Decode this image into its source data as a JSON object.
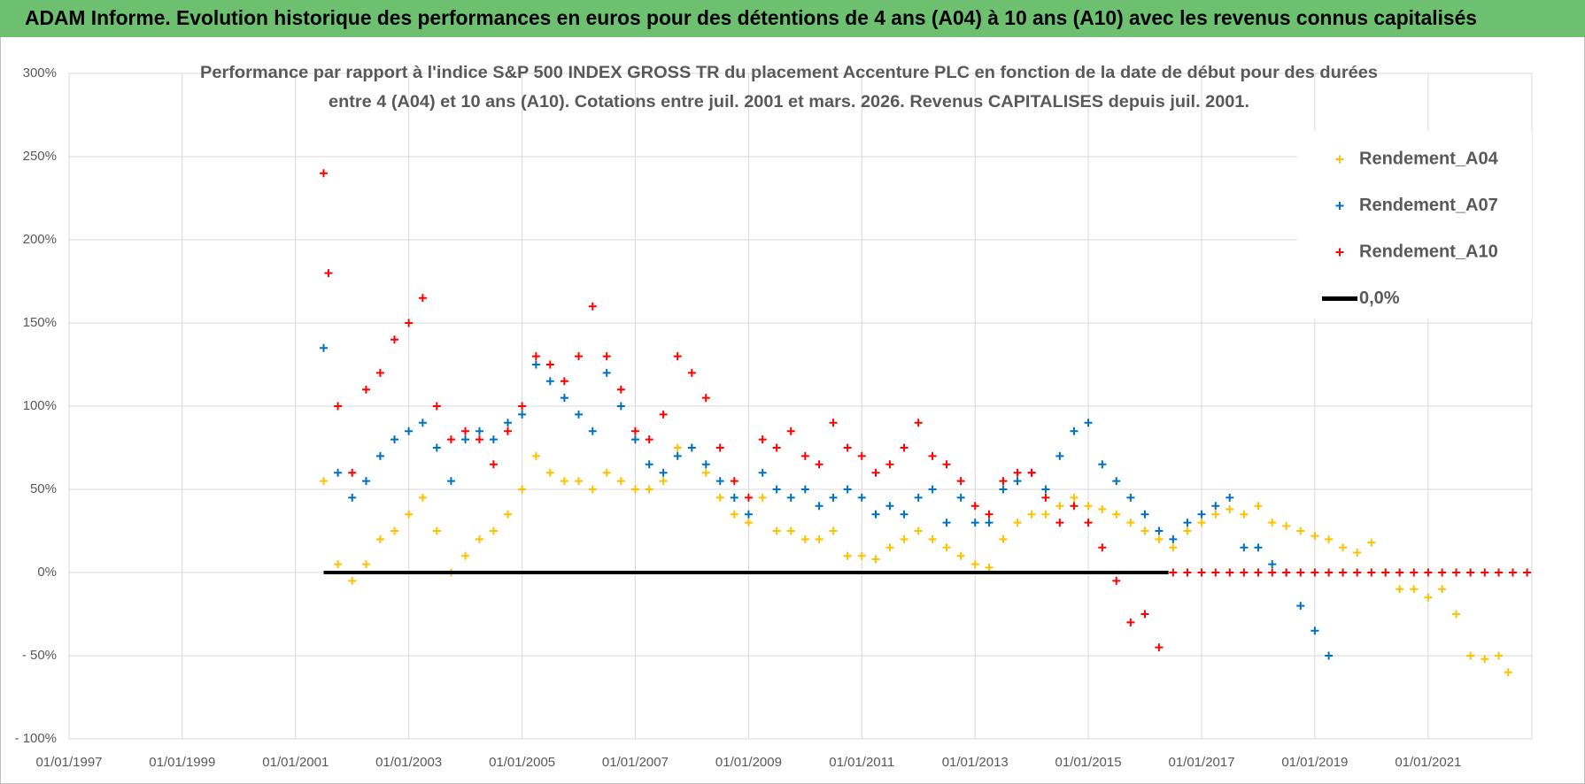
{
  "chart_data": {
    "type": "scatter",
    "title": "ADAM Informe. Evolution historique des performances en euros pour des détentions de 4 ans (A04) à 10 ans (A10) avec les revenus connus capitalisés",
    "subtitle_lines": [
      "Performance par rapport à l'indice S&P 500 INDEX GROSS TR  du placement Accenture PLC en fonction de la date de début pour des durées",
      "entre 4 (A04) et 10 ans (A10). Cotations entre juil. 2001 et mars. 2026. Revenus CAPITALISES depuis juil. 2001."
    ],
    "xlim": [
      "01/01/1997",
      "01/11/2022"
    ],
    "xticks": [
      "01/01/1997",
      "01/01/1999",
      "01/01/2001",
      "01/01/2003",
      "01/01/2005",
      "01/01/2007",
      "01/01/2009",
      "01/01/2011",
      "01/01/2013",
      "01/01/2015",
      "01/01/2017",
      "01/01/2019",
      "01/01/2021"
    ],
    "ylim": [
      -100,
      300
    ],
    "yticks": [
      {
        "value": 300,
        "label": "300%"
      },
      {
        "value": 250,
        "label": "250%"
      },
      {
        "value": 200,
        "label": "200%"
      },
      {
        "value": 150,
        "label": "150%"
      },
      {
        "value": 100,
        "label": "100%"
      },
      {
        "value": 50,
        "label": "50%"
      },
      {
        "value": 0,
        "label": "0%"
      },
      {
        "value": -50,
        "label": "- 50%"
      },
      {
        "value": -100,
        "label": "- 100%"
      }
    ],
    "grid": true,
    "legend": "upper right",
    "series": [
      {
        "name": "Rendement_A04",
        "color": "#ffc000",
        "x": [
          "01/07/2001",
          "01/10/2001",
          "01/01/2002",
          "01/04/2002",
          "01/07/2002",
          "01/10/2002",
          "01/01/2003",
          "01/04/2003",
          "01/07/2003",
          "01/10/2003",
          "01/01/2004",
          "01/04/2004",
          "01/07/2004",
          "01/10/2004",
          "01/01/2005",
          "01/04/2005",
          "01/07/2005",
          "01/10/2005",
          "01/01/2006",
          "01/04/2006",
          "01/07/2006",
          "01/10/2006",
          "01/01/2007",
          "01/04/2007",
          "01/07/2007",
          "01/10/2007",
          "01/01/2008",
          "01/04/2008",
          "01/07/2008",
          "01/10/2008",
          "01/01/2009",
          "01/04/2009",
          "01/07/2009",
          "01/10/2009",
          "01/01/2010",
          "01/04/2010",
          "01/07/2010",
          "01/10/2010",
          "01/01/2011",
          "01/04/2011",
          "01/07/2011",
          "01/10/2011",
          "01/01/2012",
          "01/04/2012",
          "01/07/2012",
          "01/10/2012",
          "01/01/2013",
          "01/04/2013",
          "01/07/2013",
          "01/10/2013",
          "01/01/2014",
          "01/04/2014",
          "01/07/2014",
          "01/10/2014",
          "01/01/2015",
          "01/04/2015",
          "01/07/2015",
          "01/10/2015",
          "01/01/2016",
          "01/04/2016",
          "01/07/2016",
          "01/10/2016",
          "01/01/2017",
          "01/04/2017",
          "01/07/2017",
          "01/10/2017",
          "01/01/2018",
          "01/04/2018",
          "01/07/2018",
          "01/10/2018",
          "01/01/2019",
          "01/04/2019",
          "01/07/2019",
          "01/10/2019",
          "01/01/2020",
          "01/04/2020",
          "01/07/2020",
          "01/10/2020",
          "01/01/2021",
          "01/04/2021",
          "01/07/2021",
          "01/10/2021",
          "01/01/2022",
          "01/04/2022",
          "01/06/2022"
        ],
        "values": [
          55,
          5,
          -5,
          5,
          20,
          25,
          35,
          45,
          25,
          0,
          10,
          20,
          25,
          35,
          50,
          70,
          60,
          55,
          55,
          50,
          60,
          55,
          50,
          50,
          55,
          75,
          75,
          60,
          45,
          35,
          30,
          45,
          25,
          25,
          20,
          20,
          25,
          10,
          10,
          8,
          15,
          20,
          25,
          20,
          15,
          10,
          5,
          3,
          20,
          30,
          35,
          35,
          40,
          45,
          40,
          38,
          35,
          30,
          25,
          20,
          15,
          25,
          30,
          35,
          38,
          35,
          40,
          30,
          28,
          25,
          22,
          20,
          15,
          12,
          18,
          0,
          -10,
          -10,
          -15,
          -10,
          -25,
          -50,
          -52,
          -50,
          -60
        ]
      },
      {
        "name": "Rendement_A07",
        "color": "#0070c0",
        "x": [
          "01/07/2001",
          "01/10/2001",
          "01/01/2002",
          "01/04/2002",
          "01/07/2002",
          "01/10/2002",
          "01/01/2003",
          "01/04/2003",
          "01/07/2003",
          "01/10/2003",
          "01/01/2004",
          "01/04/2004",
          "01/07/2004",
          "01/10/2004",
          "01/01/2005",
          "01/04/2005",
          "01/07/2005",
          "01/10/2005",
          "01/01/2006",
          "01/04/2006",
          "01/07/2006",
          "01/10/2006",
          "01/01/2007",
          "01/04/2007",
          "01/07/2007",
          "01/10/2007",
          "01/01/2008",
          "01/04/2008",
          "01/07/2008",
          "01/10/2008",
          "01/01/2009",
          "01/04/2009",
          "01/07/2009",
          "01/10/2009",
          "01/01/2010",
          "01/04/2010",
          "01/07/2010",
          "01/10/2010",
          "01/01/2011",
          "01/04/2011",
          "01/07/2011",
          "01/10/2011",
          "01/01/2012",
          "01/04/2012",
          "01/07/2012",
          "01/10/2012",
          "01/01/2013",
          "01/04/2013",
          "01/07/2013",
          "01/10/2013",
          "01/01/2014",
          "01/04/2014",
          "01/07/2014",
          "01/10/2014",
          "01/01/2015",
          "01/04/2015",
          "01/07/2015",
          "01/10/2015",
          "01/01/2016",
          "01/04/2016",
          "01/07/2016",
          "01/10/2016",
          "01/01/2017",
          "01/04/2017",
          "01/07/2017",
          "01/10/2017",
          "01/01/2018",
          "01/04/2018",
          "01/07/2018",
          "01/10/2018",
          "01/01/2019",
          "01/04/2019"
        ],
        "values": [
          135,
          60,
          45,
          55,
          70,
          80,
          85,
          90,
          75,
          55,
          80,
          85,
          80,
          90,
          95,
          125,
          115,
          105,
          95,
          85,
          120,
          100,
          80,
          65,
          60,
          70,
          75,
          65,
          55,
          45,
          35,
          60,
          50,
          45,
          50,
          40,
          45,
          50,
          45,
          35,
          40,
          35,
          45,
          50,
          30,
          45,
          30,
          30,
          50,
          55,
          60,
          50,
          70,
          85,
          90,
          65,
          55,
          45,
          35,
          25,
          20,
          30,
          35,
          40,
          45,
          15,
          15,
          5,
          0,
          -20,
          -35,
          -50
        ]
      },
      {
        "name": "Rendement_A10",
        "color": "#ff0000",
        "x": [
          "01/07/2001",
          "01/08/2001",
          "01/10/2001",
          "01/01/2002",
          "01/04/2002",
          "01/07/2002",
          "01/10/2002",
          "01/01/2003",
          "01/04/2003",
          "01/07/2003",
          "01/10/2003",
          "01/01/2004",
          "01/04/2004",
          "01/07/2004",
          "01/10/2004",
          "01/01/2005",
          "01/04/2005",
          "01/07/2005",
          "01/10/2005",
          "01/01/2006",
          "01/04/2006",
          "01/07/2006",
          "01/10/2006",
          "01/01/2007",
          "01/04/2007",
          "01/07/2007",
          "01/10/2007",
          "01/01/2008",
          "01/04/2008",
          "01/07/2008",
          "01/10/2008",
          "01/01/2009",
          "01/04/2009",
          "01/07/2009",
          "01/10/2009",
          "01/01/2010",
          "01/04/2010",
          "01/07/2010",
          "01/10/2010",
          "01/01/2011",
          "01/04/2011",
          "01/07/2011",
          "01/10/2011",
          "01/01/2012",
          "01/04/2012",
          "01/07/2012",
          "01/10/2012",
          "01/01/2013",
          "01/04/2013",
          "01/07/2013",
          "01/10/2013",
          "01/01/2014",
          "01/04/2014",
          "01/07/2014",
          "01/10/2014",
          "01/01/2015",
          "01/04/2015",
          "01/07/2015",
          "01/10/2015",
          "01/01/2016",
          "01/04/2016",
          "01/07/2016",
          "01/10/2016",
          "01/01/2017",
          "01/04/2017",
          "01/07/2017",
          "01/10/2017",
          "01/01/2018",
          "01/04/2018",
          "01/07/2018",
          "01/10/2018",
          "01/01/2019",
          "01/04/2019",
          "01/07/2019",
          "01/10/2019",
          "01/01/2020",
          "01/04/2020",
          "01/07/2020",
          "01/10/2020",
          "01/01/2021",
          "01/04/2021",
          "01/07/2021",
          "01/10/2021",
          "01/01/2022",
          "01/04/2022",
          "01/07/2022",
          "01/10/2022"
        ],
        "values": [
          240,
          180,
          100,
          60,
          110,
          120,
          140,
          150,
          165,
          100,
          80,
          85,
          80,
          65,
          85,
          100,
          130,
          125,
          115,
          130,
          160,
          130,
          110,
          85,
          80,
          95,
          130,
          120,
          105,
          75,
          55,
          45,
          80,
          75,
          85,
          70,
          65,
          90,
          75,
          70,
          60,
          65,
          75,
          90,
          70,
          65,
          55,
          40,
          35,
          55,
          60,
          60,
          45,
          30,
          40,
          30,
          15,
          -5,
          -30,
          -25,
          -45,
          0,
          0,
          0,
          0,
          0,
          0,
          0,
          0,
          0,
          0,
          0,
          0,
          0,
          0,
          0,
          0,
          0,
          0,
          0,
          0,
          0,
          0,
          0,
          0,
          0,
          0
        ]
      },
      {
        "name": "0,0%",
        "color": "#000000",
        "type": "line",
        "x": [
          "01/07/2001",
          "01/06/2016"
        ],
        "values": [
          0,
          0
        ]
      }
    ]
  }
}
